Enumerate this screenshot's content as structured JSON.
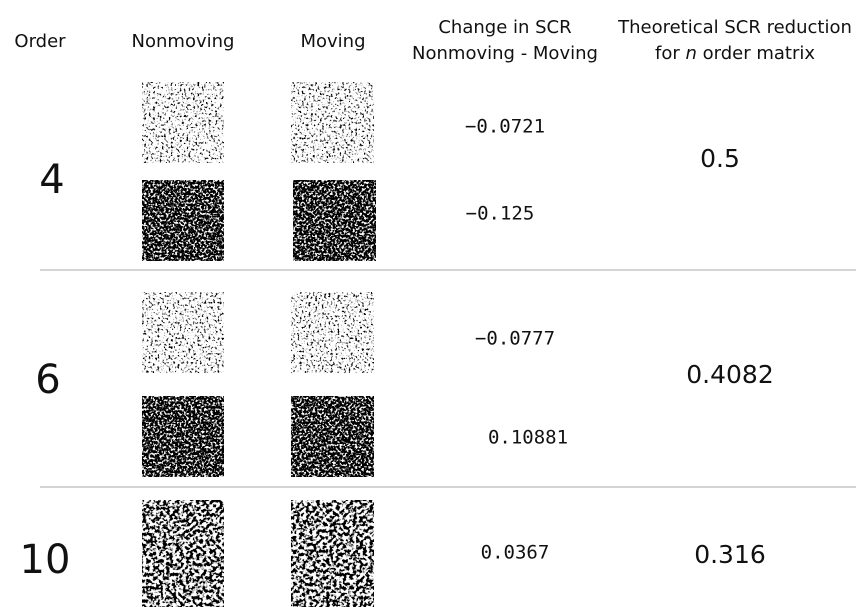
{
  "header": {
    "order": "Order",
    "nonmoving": "Nonmoving",
    "moving": "Moving",
    "change": [
      "Change in SCR",
      "Nonmoving - Moving"
    ],
    "theoretical": [
      "Theoretical SCR reduction",
      "for ",
      "n",
      " order matrix"
    ]
  },
  "rows": [
    {
      "order": "4",
      "changes": [
        "−0.0721",
        "−0.125"
      ],
      "theoretical": "0.5"
    },
    {
      "order": "6",
      "changes": [
        "−0.0777",
        "0.10881"
      ],
      "theoretical": "0.4082"
    },
    {
      "order": "10",
      "changes": [
        "0.0367"
      ],
      "theoretical": "0.316"
    }
  ]
}
